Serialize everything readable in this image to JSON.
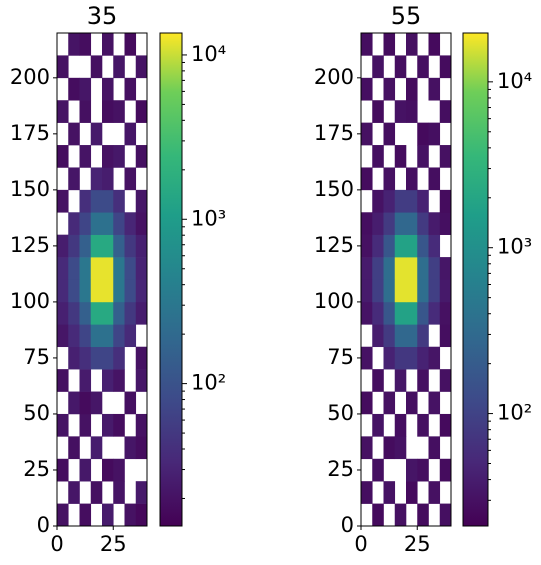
{
  "chart_data": [
    {
      "type": "heatmap",
      "title": "35",
      "xlim": [
        0,
        40
      ],
      "ylim": [
        0,
        220
      ],
      "xticks": [
        0,
        25
      ],
      "yticks": [
        0,
        25,
        50,
        75,
        100,
        125,
        150,
        175,
        200
      ],
      "colormap": "viridis",
      "color_log": true,
      "clim": [
        13.6,
        13600
      ],
      "cticks": [
        {
          "value": 100,
          "label": "10²"
        },
        {
          "value": 1000,
          "label": "10³"
        },
        {
          "value": 10000,
          "label": "10⁴"
        }
      ],
      "z": [
        [
          20,
          null,
          18,
          null,
          25,
          null,
          20,
          16
        ],
        [
          null,
          22,
          null,
          19,
          null,
          21,
          null,
          24
        ],
        [
          18,
          null,
          23,
          null,
          17,
          20,
          null,
          null
        ],
        [
          null,
          19,
          null,
          26,
          null,
          null,
          22,
          18
        ],
        [
          21,
          null,
          20,
          null,
          24,
          18,
          null,
          20
        ],
        [
          null,
          23,
          17,
          22,
          null,
          null,
          19,
          null
        ],
        [
          19,
          null,
          25,
          null,
          28,
          21,
          null,
          22
        ],
        [
          null,
          28,
          40,
          70,
          70,
          40,
          null,
          20
        ],
        [
          22,
          35,
          70,
          250,
          250,
          70,
          35,
          null
        ],
        [
          28,
          50,
          150,
          1500,
          1500,
          150,
          50,
          26
        ],
        [
          35,
          80,
          300,
          12000,
          12000,
          300,
          80,
          32
        ],
        [
          35,
          80,
          300,
          12000,
          12000,
          300,
          80,
          30
        ],
        [
          26,
          50,
          150,
          1500,
          1500,
          150,
          50,
          28
        ],
        [
          null,
          35,
          70,
          250,
          250,
          70,
          32,
          20
        ],
        [
          20,
          null,
          40,
          80,
          80,
          40,
          null,
          22
        ],
        [
          null,
          22,
          null,
          30,
          26,
          null,
          20,
          null
        ],
        [
          18,
          null,
          21,
          null,
          20,
          23,
          null,
          19
        ],
        [
          null,
          20,
          null,
          24,
          null,
          null,
          22,
          null
        ],
        [
          21,
          null,
          19,
          null,
          18,
          20,
          null,
          17
        ],
        [
          null,
          18,
          22,
          null,
          21,
          null,
          19,
          null
        ],
        [
          20,
          null,
          null,
          19,
          null,
          22,
          null,
          21
        ],
        [
          null,
          21,
          18,
          null,
          20,
          null,
          17,
          null
        ]
      ]
    },
    {
      "type": "heatmap",
      "title": "55",
      "xlim": [
        0,
        40
      ],
      "ylim": [
        0,
        220
      ],
      "xticks": [
        0,
        25
      ],
      "yticks": [
        0,
        25,
        50,
        75,
        100,
        125,
        150,
        175,
        200
      ],
      "colormap": "viridis",
      "color_log": true,
      "clim": [
        21,
        19700
      ],
      "cticks": [
        {
          "value": 100,
          "label": "10²"
        },
        {
          "value": 1000,
          "label": "10³"
        },
        {
          "value": 10000,
          "label": "10⁴"
        }
      ],
      "z": [
        [
          null,
          26,
          null,
          30,
          null,
          27,
          null,
          29
        ],
        [
          28,
          null,
          31,
          null,
          26,
          null,
          30,
          null
        ],
        [
          null,
          29,
          null,
          null,
          33,
          28,
          null,
          27
        ],
        [
          30,
          null,
          27,
          31,
          null,
          null,
          29,
          null
        ],
        [
          null,
          32,
          null,
          28,
          null,
          30,
          null,
          26
        ],
        [
          27,
          null,
          30,
          null,
          29,
          null,
          31,
          null
        ],
        [
          null,
          28,
          null,
          34,
          null,
          29,
          null,
          30
        ],
        [
          31,
          null,
          45,
          75,
          75,
          45,
          33,
          null
        ],
        [
          null,
          40,
          80,
          280,
          280,
          80,
          null,
          28
        ],
        [
          32,
          55,
          170,
          1800,
          1800,
          170,
          55,
          30
        ],
        [
          38,
          90,
          340,
          17000,
          17000,
          340,
          90,
          36
        ],
        [
          38,
          90,
          340,
          17000,
          17000,
          340,
          90,
          34
        ],
        [
          30,
          55,
          170,
          1800,
          1800,
          170,
          55,
          null
        ],
        [
          28,
          40,
          80,
          280,
          280,
          80,
          38,
          29
        ],
        [
          null,
          31,
          45,
          85,
          85,
          45,
          null,
          27
        ],
        [
          27,
          null,
          30,
          null,
          29,
          null,
          28,
          null
        ],
        [
          null,
          29,
          null,
          27,
          null,
          31,
          null,
          30
        ],
        [
          30,
          null,
          28,
          null,
          null,
          26,
          29,
          null
        ],
        [
          null,
          27,
          null,
          31,
          29,
          null,
          null,
          28
        ],
        [
          29,
          null,
          30,
          null,
          27,
          null,
          30,
          null
        ],
        [
          null,
          31,
          null,
          28,
          null,
          29,
          null,
          27
        ],
        [
          28,
          null,
          27,
          null,
          30,
          null,
          26,
          null
        ]
      ]
    }
  ]
}
